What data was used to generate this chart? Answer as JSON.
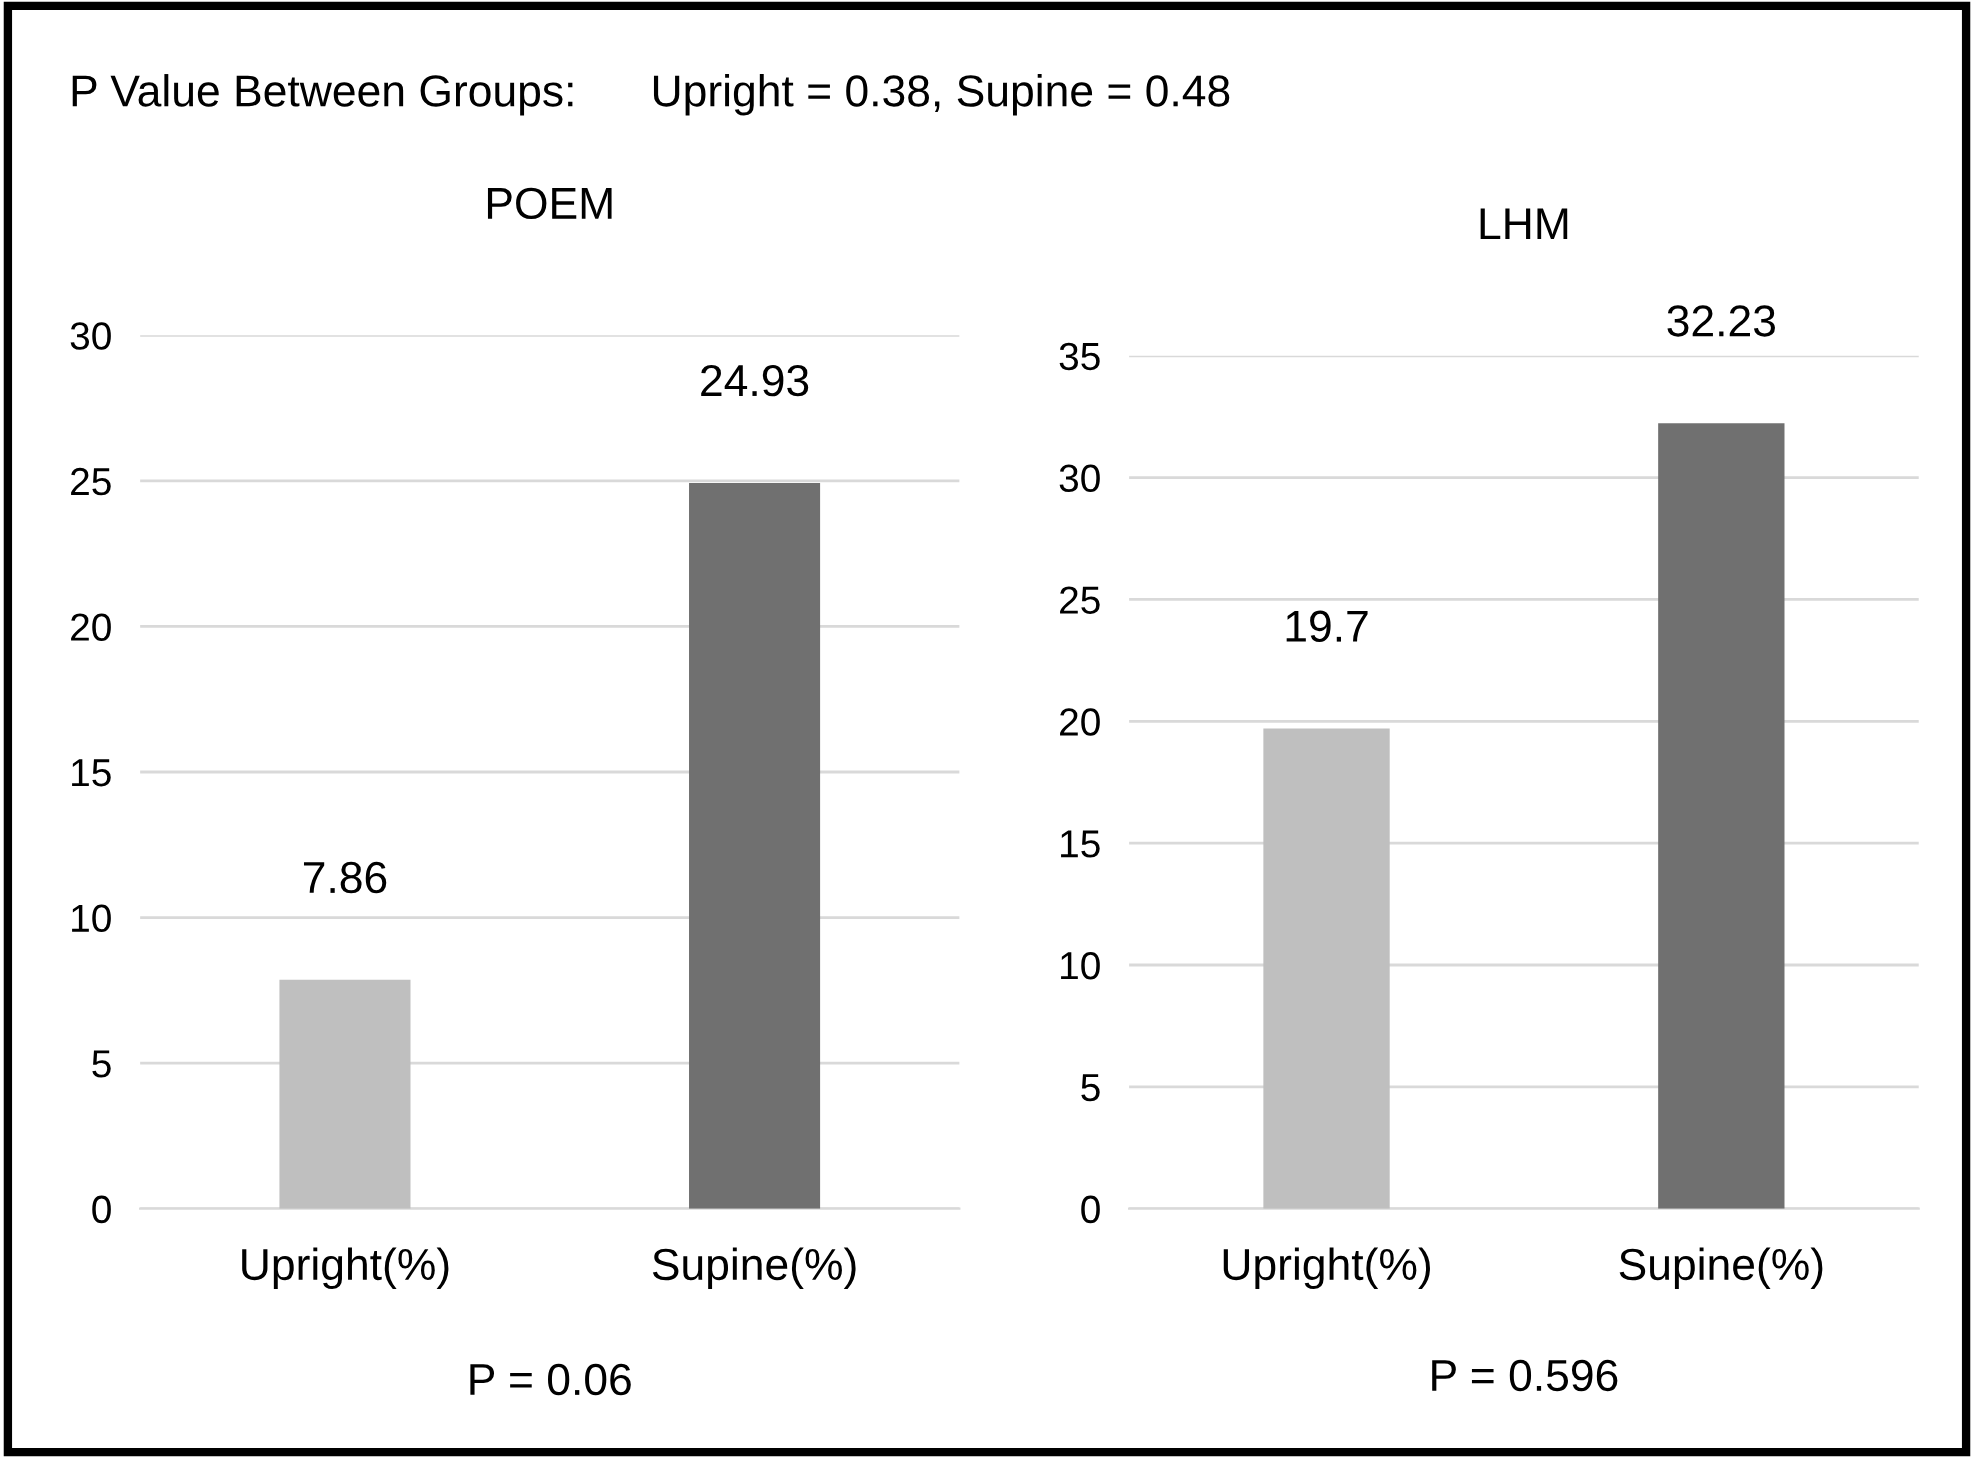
{
  "chart_data": [
    {
      "type": "bar",
      "title": "POEM",
      "categories": [
        "Upright(%)",
        "Supine(%)"
      ],
      "values": [
        7.86,
        24.93
      ],
      "colors": [
        "#bfbfbf",
        "#707070"
      ],
      "ylim": [
        0,
        30
      ],
      "yticks": [
        0,
        5,
        10,
        15,
        20,
        25,
        30
      ],
      "grid": "y",
      "data_labels": true,
      "annotations": [
        "P = 0.06",
        "P Value Between Groups:      Upright = 0.38, Supine = 0.48"
      ]
    },
    {
      "type": "bar",
      "title": "LHM",
      "categories": [
        "Upright(%)",
        "Supine(%)"
      ],
      "values": [
        19.7,
        32.23
      ],
      "colors": [
        "#bfbfbf",
        "#707070"
      ],
      "ylim": [
        0,
        35
      ],
      "yticks": [
        0,
        5,
        10,
        15,
        20,
        25,
        30,
        35
      ],
      "grid": "y",
      "data_labels": true,
      "annotations": [
        "P = 0.596"
      ]
    }
  ]
}
